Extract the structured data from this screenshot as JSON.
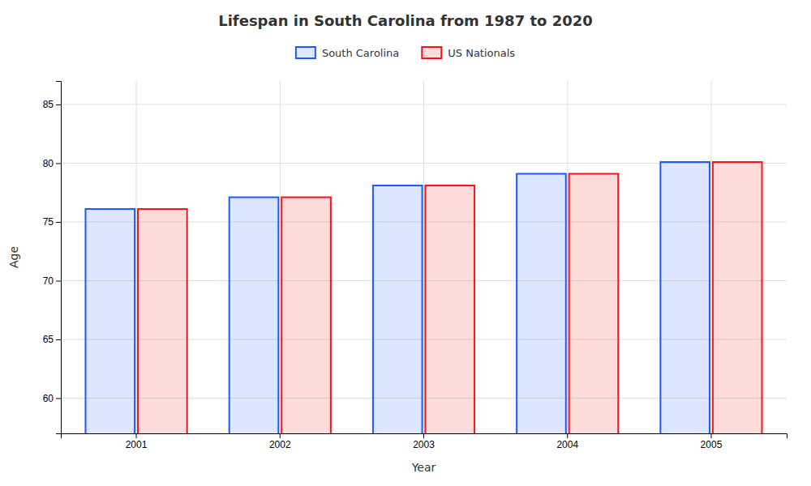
{
  "chart_data": {
    "type": "bar",
    "title": "Lifespan in South Carolina from 1987 to 2020",
    "xlabel": "Year",
    "ylabel": "Age",
    "categories": [
      "2001",
      "2002",
      "2003",
      "2004",
      "2005"
    ],
    "series": [
      {
        "name": "South Carolina",
        "color": "#1a5aff",
        "values": [
          76.1,
          77.1,
          78.1,
          79.1,
          80.1
        ]
      },
      {
        "name": "US Nationals",
        "color": "#ff1111",
        "values": [
          76.1,
          77.1,
          78.1,
          79.1,
          80.1
        ]
      }
    ],
    "ylim": [
      57,
      87
    ],
    "yticks": [
      60,
      65,
      70,
      75,
      80,
      85
    ],
    "grid": true,
    "legend": "top"
  }
}
